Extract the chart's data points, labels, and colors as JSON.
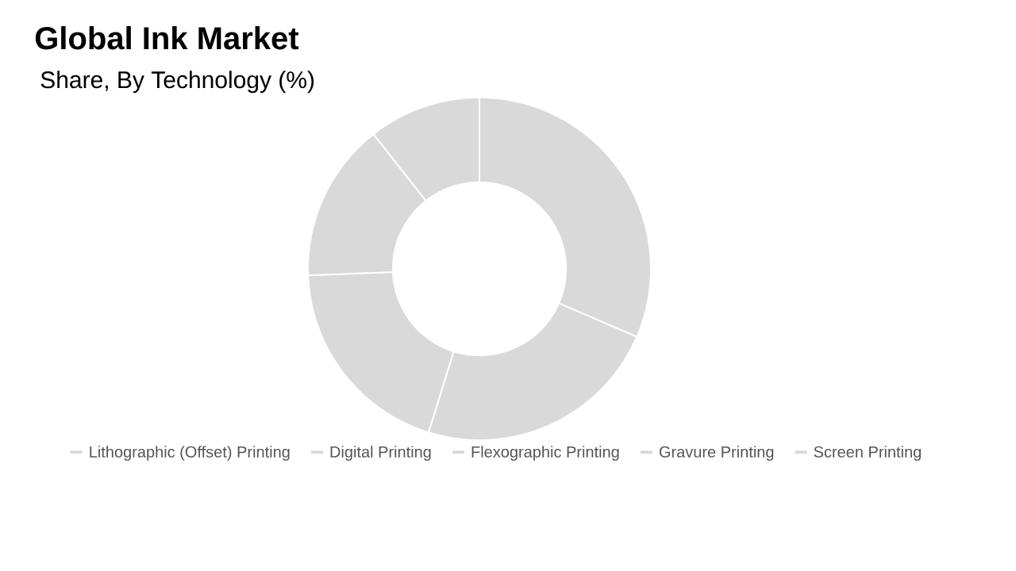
{
  "chart_data": {
    "type": "donut",
    "title": "Global Ink Market",
    "subtitle": "Share, By Technology (%)",
    "categories": [
      "Lithographic (Offset) Printing",
      "Digital Printing",
      "Flexographic Printing",
      "Gravure Printing",
      "Screen Printing"
    ],
    "values": [
      31.5,
      23.3,
      19.6,
      15.0,
      10.6
    ],
    "colors": [
      "#d9d9d9",
      "#d9d9d9",
      "#d9d9d9",
      "#d9d9d9",
      "#d9d9d9"
    ],
    "legend": "bottom"
  }
}
